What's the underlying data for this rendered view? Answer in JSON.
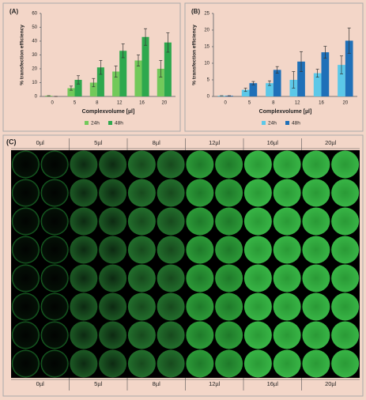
{
  "chart_data": [
    {
      "type": "bar",
      "title": "(A)",
      "x_label": "Complexvolume [µl]",
      "y_label": "% transfection efficiency",
      "categories": [
        "0",
        "5",
        "8",
        "12",
        "16",
        "20"
      ],
      "series": [
        {
          "name": "24h",
          "color": "#72c95a",
          "values": [
            0.5,
            6,
            10,
            18,
            26,
            20
          ],
          "errors": [
            0,
            1.5,
            3,
            4,
            4,
            6
          ]
        },
        {
          "name": "48h",
          "color": "#2ea84e",
          "values": [
            0,
            12,
            21,
            33,
            43,
            39
          ],
          "errors": [
            0,
            3,
            5,
            5,
            6,
            7
          ]
        }
      ],
      "ylim": [
        0,
        60
      ],
      "yticks": [
        0,
        10,
        20,
        30,
        40,
        50,
        60
      ],
      "legend": "bottom"
    },
    {
      "type": "bar",
      "title": "(B)",
      "x_label": "Complexvolume [µl]",
      "y_label": "% transfection efficiency",
      "categories": [
        "0",
        "5",
        "8",
        "12",
        "16",
        "20"
      ],
      "series": [
        {
          "name": "24h",
          "color": "#5cc8e8",
          "values": [
            0.2,
            2,
            4,
            5,
            7,
            9.5
          ],
          "errors": [
            0,
            0.5,
            0.7,
            2.5,
            1.2,
            2.7
          ]
        },
        {
          "name": "48h",
          "color": "#1f70b8",
          "values": [
            0.2,
            4,
            8,
            10.5,
            13.3,
            16.8
          ],
          "errors": [
            0,
            0.5,
            1,
            3,
            1.8,
            3.8
          ]
        }
      ],
      "ylim": [
        0,
        25
      ],
      "yticks": [
        0,
        5,
        10,
        15,
        20,
        25
      ],
      "legend": "bottom"
    }
  ],
  "panel_c": {
    "label": "(C)",
    "columns": [
      "0µl",
      "5µl",
      "8µl",
      "12µl",
      "16µl",
      "20µl"
    ]
  }
}
